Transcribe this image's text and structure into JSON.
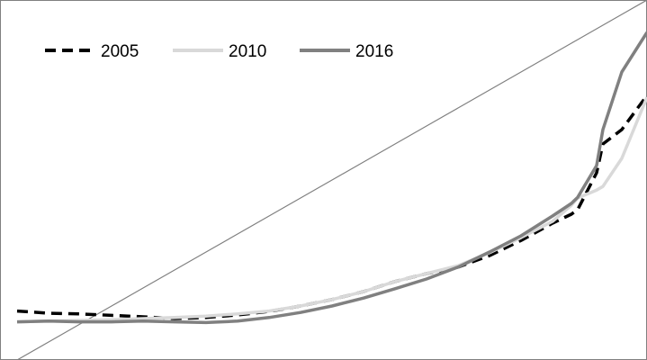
{
  "chart_data": {
    "type": "line",
    "title": "",
    "xlabel": "",
    "ylabel": "",
    "xlim": [
      0,
      1
    ],
    "ylim": [
      0,
      1
    ],
    "grid": false,
    "legend_position": "top-left",
    "x": [
      0,
      0.05,
      0.1,
      0.15,
      0.2,
      0.25,
      0.3,
      0.35,
      0.4,
      0.45,
      0.5,
      0.55,
      0.6,
      0.65,
      0.7,
      0.75,
      0.8,
      0.85,
      0.88,
      0.89,
      0.92,
      0.93,
      0.96,
      1.0
    ],
    "series": [
      {
        "name": "2005",
        "style": "dashed",
        "color": "#000000",
        "values": [
          0.136,
          0.13,
          0.128,
          0.124,
          0.12,
          0.115,
          0.118,
          0.125,
          0.135,
          0.15,
          0.168,
          0.19,
          0.218,
          0.24,
          0.258,
          0.29,
          0.332,
          0.38,
          0.405,
          0.418,
          0.52,
          0.6,
          0.64,
          0.735
        ]
      },
      {
        "name": "2010",
        "style": "solid",
        "color": "#d9d9d9",
        "values": [
          0.106,
          0.108,
          0.11,
          0.112,
          0.115,
          0.118,
          0.122,
          0.128,
          0.136,
          0.15,
          0.168,
          0.19,
          0.218,
          0.24,
          0.262,
          0.298,
          0.34,
          0.385,
          0.43,
          0.45,
          0.472,
          0.482,
          0.56,
          0.73
        ]
      },
      {
        "name": "2016",
        "style": "solid",
        "color": "#808080",
        "values": [
          0.106,
          0.108,
          0.106,
          0.106,
          0.108,
          0.106,
          0.104,
          0.108,
          0.118,
          0.132,
          0.15,
          0.172,
          0.198,
          0.225,
          0.258,
          0.3,
          0.345,
          0.4,
          0.435,
          0.452,
          0.54,
          0.64,
          0.8,
          0.91
        ]
      },
      {
        "name": "",
        "style": "solid",
        "color": "#808080",
        "values": [
          0,
          0.05,
          0.1,
          0.15,
          0.2,
          0.25,
          0.3,
          0.35,
          0.4,
          0.45,
          0.5,
          0.55,
          0.6,
          0.65,
          0.7,
          0.75,
          0.8,
          0.85,
          0.88,
          0.89,
          0.92,
          0.93,
          0.96,
          1.0
        ]
      }
    ]
  }
}
